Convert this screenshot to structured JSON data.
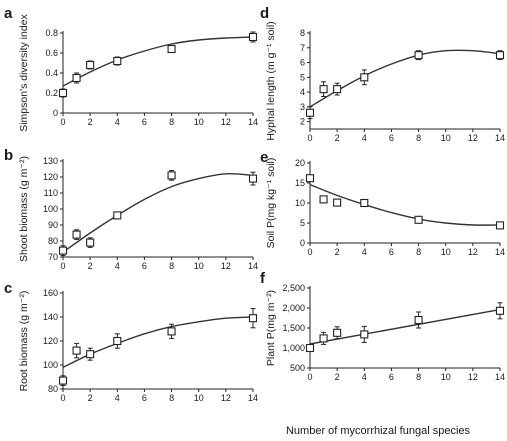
{
  "figure": {
    "xlabel_shared": "Number of mycorrhizal fungal species"
  },
  "chart_data": [
    {
      "panel": "a",
      "type": "scatter",
      "ylabel": "Simpson's diversity index",
      "x": [
        0,
        1,
        2,
        4,
        8,
        14
      ],
      "y": [
        0.2,
        0.35,
        0.48,
        0.52,
        0.64,
        0.76
      ],
      "err": [
        0.04,
        0.05,
        0.04,
        0.04,
        0.03,
        0.05
      ],
      "fit": {
        "type": "curve",
        "x": [
          0,
          2,
          4,
          6,
          8,
          10,
          12,
          14
        ],
        "y": [
          0.27,
          0.41,
          0.53,
          0.62,
          0.69,
          0.73,
          0.75,
          0.76
        ]
      },
      "xlim": [
        0,
        14
      ],
      "ylim": [
        0,
        0.8
      ],
      "xticks": [
        "0",
        "2",
        "4",
        "6",
        "8",
        "10",
        "12",
        "14"
      ],
      "yticks": [
        "0",
        "0.2",
        "0.4",
        "0.6",
        "0.8"
      ]
    },
    {
      "panel": "b",
      "type": "scatter",
      "ylabel": "Shoot biomass (g m⁻²)",
      "x": [
        0,
        1,
        2,
        4,
        8,
        14
      ],
      "y": [
        74,
        84,
        79,
        96,
        121,
        119
      ],
      "err": [
        3,
        3,
        3,
        2,
        3,
        4
      ],
      "fit": {
        "type": "curve",
        "x": [
          0,
          2,
          4,
          6,
          8,
          10,
          12,
          14
        ],
        "y": [
          73,
          85,
          96,
          106,
          114,
          119,
          122,
          121
        ]
      },
      "xlim": [
        0,
        14
      ],
      "ylim": [
        70,
        130
      ],
      "xticks": [
        "0",
        "2",
        "4",
        "6",
        "8",
        "10",
        "12",
        "14"
      ],
      "yticks": [
        "70",
        "80",
        "90",
        "100",
        "110",
        "120",
        "130"
      ]
    },
    {
      "panel": "c",
      "type": "scatter",
      "ylabel": "Root biomass (g m⁻²)",
      "x": [
        0,
        1,
        2,
        4,
        8,
        14
      ],
      "y": [
        87,
        112,
        109,
        120,
        128,
        139
      ],
      "err": [
        4,
        6,
        5,
        6,
        6,
        8
      ],
      "fit": {
        "type": "curve",
        "x": [
          0,
          2,
          4,
          6,
          8,
          10,
          12,
          14
        ],
        "y": [
          98,
          109,
          118,
          126,
          132,
          136,
          139,
          140
        ]
      },
      "xlim": [
        0,
        14
      ],
      "ylim": [
        80,
        160
      ],
      "xticks": [
        "0",
        "2",
        "4",
        "6",
        "8",
        "10",
        "12",
        "14"
      ],
      "yticks": [
        "80",
        "100",
        "120",
        "140",
        "160"
      ]
    },
    {
      "panel": "d",
      "type": "scatter",
      "ylabel": "Hyphal length (m g⁻¹ soil)",
      "x": [
        0,
        1,
        2,
        4,
        8,
        14
      ],
      "y": [
        2.6,
        4.2,
        4.2,
        5.0,
        6.5,
        6.5
      ],
      "err": [
        0.4,
        0.5,
        0.4,
        0.5,
        0.3,
        0.3
      ],
      "fit": {
        "type": "curve",
        "x": [
          0,
          2,
          4,
          6,
          8,
          10,
          12,
          14
        ],
        "y": [
          3.0,
          4.1,
          5.1,
          5.9,
          6.5,
          6.8,
          6.8,
          6.6
        ]
      },
      "xlim": [
        0,
        14
      ],
      "ylim": [
        1.5,
        8
      ],
      "xticks": [
        "0",
        "2",
        "4",
        "6",
        "8",
        "10",
        "12",
        "14"
      ],
      "yticks": [
        "2",
        "3",
        "4",
        "5",
        "6",
        "7",
        "8"
      ]
    },
    {
      "panel": "e",
      "type": "scatter",
      "ylabel": "Soil P(mg kg⁻¹ soil)",
      "x": [
        0,
        1,
        2,
        4,
        8,
        14
      ],
      "y": [
        16.2,
        10.9,
        10.1,
        10.0,
        5.8,
        4.4
      ],
      "err": [
        0.8,
        0.5,
        0.8,
        0.8,
        0.8,
        0.4
      ],
      "fit": {
        "type": "curve",
        "x": [
          0,
          2,
          4,
          6,
          8,
          10,
          12,
          14
        ],
        "y": [
          14.6,
          11.9,
          9.6,
          7.6,
          6.0,
          5.0,
          4.5,
          4.5
        ]
      },
      "xlim": [
        0,
        14
      ],
      "ylim": [
        0,
        20
      ],
      "xticks": [
        "0",
        "2",
        "4",
        "6",
        "8",
        "10",
        "12",
        "14"
      ],
      "yticks": [
        "0",
        "5",
        "10",
        "15",
        "20"
      ]
    },
    {
      "panel": "f",
      "type": "scatter",
      "ylabel": "Plant P(mg m⁻²)",
      "x": [
        0,
        1,
        2,
        4,
        8,
        14
      ],
      "y": [
        1000,
        1240,
        1380,
        1340,
        1700,
        1930
      ],
      "err": [
        0,
        150,
        150,
        200,
        200,
        200
      ],
      "fit": {
        "type": "line",
        "x": [
          0,
          14
        ],
        "y": [
          1100,
          1960
        ]
      },
      "xlim": [
        0,
        14
      ],
      "ylim": [
        500,
        2500
      ],
      "xticks": [
        "0",
        "2",
        "4",
        "6",
        "8",
        "10",
        "12",
        "14"
      ],
      "yticks": [
        "500",
        "1,000",
        "1,500",
        "2,000",
        "2,500"
      ]
    }
  ]
}
